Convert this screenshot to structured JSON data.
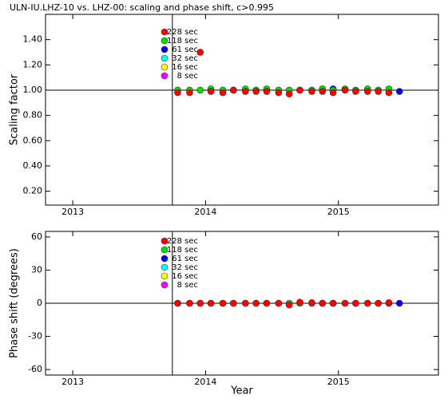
{
  "chart_data": [
    {
      "type": "scatter",
      "title": "ULN-IU.LHZ-10 vs. LHZ-00: scaling and phase shift, c>0.995",
      "ylabel": "Scaling factor",
      "x": [
        2013.79,
        2013.88,
        2013.96,
        2014.04,
        2014.13,
        2014.21,
        2014.3,
        2014.38,
        2014.46,
        2014.55,
        2014.63,
        2014.71,
        2014.8,
        2014.88,
        2014.96,
        2015.05,
        2015.13,
        2015.22,
        2015.3,
        2015.38,
        2015.46
      ],
      "xlim": [
        2012.795,
        2015.753
      ],
      "xticks": [
        2013,
        2014,
        2015
      ],
      "ylim": [
        0.09,
        1.6
      ],
      "yticks": [
        {
          "value": 0.2,
          "label": "0.20"
        },
        {
          "value": 0.4,
          "label": "0.40"
        },
        {
          "value": 0.6,
          "label": "0.60"
        },
        {
          "value": 0.8,
          "label": "0.80"
        },
        {
          "value": 1.0,
          "label": "1.00"
        },
        {
          "value": 1.2,
          "label": "1.20"
        },
        {
          "value": 1.4,
          "label": "1.40"
        }
      ],
      "vline": 2013.75,
      "hline": 1.0,
      "series": [
        {
          "name": "8 sec",
          "color": "#ff00ff",
          "values": [
            null,
            null,
            null,
            null,
            null,
            null,
            null,
            null,
            null,
            null,
            null,
            null,
            null,
            null,
            null,
            null,
            null,
            null,
            null,
            null,
            null
          ]
        },
        {
          "name": "16 sec",
          "color": "#ffff00",
          "values": [
            null,
            null,
            null,
            null,
            null,
            null,
            null,
            null,
            null,
            null,
            null,
            null,
            null,
            null,
            null,
            null,
            null,
            null,
            null,
            null,
            null
          ]
        },
        {
          "name": "32 sec",
          "color": "#00ffff",
          "values": [
            null,
            null,
            null,
            null,
            null,
            null,
            null,
            null,
            null,
            null,
            null,
            null,
            null,
            null,
            null,
            null,
            null,
            null,
            null,
            null,
            null
          ]
        },
        {
          "name": "61 sec",
          "color": "#0000ff",
          "values": [
            null,
            null,
            null,
            null,
            null,
            null,
            null,
            null,
            null,
            null,
            null,
            null,
            null,
            1.01,
            1.01,
            null,
            null,
            null,
            null,
            null,
            0.99
          ]
        },
        {
          "name": "118 sec",
          "color": "#00e000",
          "values": [
            1.0,
            1.0,
            1.0,
            1.01,
            1.0,
            1.0,
            1.01,
            1.0,
            1.01,
            1.0,
            1.0,
            1.0,
            1.0,
            1.01,
            1.0,
            1.01,
            1.0,
            1.01,
            1.0,
            1.01,
            null
          ]
        },
        {
          "name": "228 sec",
          "color": "#ff0000",
          "values": [
            0.98,
            0.98,
            1.3,
            0.99,
            0.98,
            1.0,
            0.99,
            0.99,
            0.99,
            0.98,
            0.97,
            1.0,
            0.99,
            0.99,
            0.98,
            1.0,
            0.99,
            0.99,
            0.99,
            0.98,
            null
          ]
        }
      ]
    },
    {
      "type": "scatter",
      "ylabel": "Phase shift (degrees)",
      "xlabel": "Year",
      "x": [
        2013.79,
        2013.88,
        2013.96,
        2014.04,
        2014.13,
        2014.21,
        2014.3,
        2014.38,
        2014.46,
        2014.55,
        2014.63,
        2014.71,
        2014.8,
        2014.88,
        2014.96,
        2015.05,
        2015.13,
        2015.22,
        2015.3,
        2015.38,
        2015.46
      ],
      "xlim": [
        2012.795,
        2015.753
      ],
      "xticks": [
        2013,
        2014,
        2015
      ],
      "ylim": [
        -65,
        65
      ],
      "yticks": [
        -60,
        -30,
        0,
        30,
        60
      ],
      "vline": 2013.75,
      "hline": 0,
      "series": [
        {
          "name": "8 sec",
          "color": "#ff00ff",
          "values": [
            null,
            null,
            null,
            null,
            null,
            null,
            null,
            null,
            null,
            null,
            null,
            null,
            null,
            null,
            null,
            null,
            null,
            null,
            null,
            null,
            null
          ]
        },
        {
          "name": "16 sec",
          "color": "#ffff00",
          "values": [
            null,
            null,
            null,
            null,
            null,
            null,
            null,
            null,
            null,
            null,
            null,
            null,
            null,
            null,
            null,
            null,
            null,
            null,
            null,
            null,
            null
          ]
        },
        {
          "name": "32 sec",
          "color": "#00ffff",
          "values": [
            null,
            null,
            null,
            null,
            null,
            null,
            null,
            null,
            null,
            null,
            null,
            null,
            null,
            null,
            null,
            null,
            null,
            null,
            null,
            null,
            null
          ]
        },
        {
          "name": "61 sec",
          "color": "#0000ff",
          "values": [
            null,
            null,
            null,
            null,
            null,
            null,
            null,
            null,
            null,
            null,
            null,
            null,
            null,
            0,
            0,
            null,
            null,
            null,
            null,
            null,
            0
          ]
        },
        {
          "name": "118 sec",
          "color": "#00e000",
          "values": [
            0,
            0,
            0,
            0,
            0,
            0,
            0,
            0,
            0,
            0,
            0,
            0,
            0,
            0,
            0,
            0,
            0,
            0,
            0,
            0,
            null
          ]
        },
        {
          "name": "228 sec",
          "color": "#ff0000",
          "values": [
            0,
            0,
            0,
            0,
            0,
            0,
            0,
            0,
            0,
            0,
            -1.5,
            1,
            0.5,
            0,
            0,
            0,
            0,
            0,
            0,
            0.5,
            null
          ]
        }
      ]
    }
  ]
}
